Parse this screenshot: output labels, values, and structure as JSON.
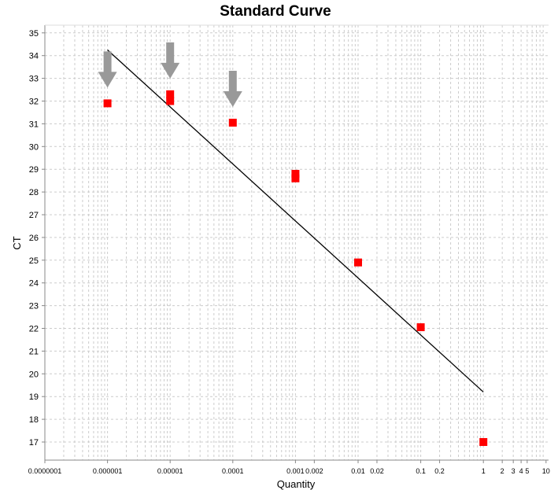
{
  "chart_data": {
    "type": "scatter",
    "title": "Standard Curve",
    "xlabel": "Quantity",
    "ylabel": "CT",
    "xscale": "log",
    "xlim": [
      1e-07,
      10
    ],
    "ylim": [
      16.2,
      35.4
    ],
    "grid": true,
    "x_tick_labels": [
      "0.0000001",
      "0.000001",
      "0.00001",
      "0.0001",
      "0.001",
      "0.002",
      "0.01",
      "0.02",
      "0.1",
      "0.2",
      "1",
      "2",
      "3",
      "4",
      "5",
      "10"
    ],
    "x_tick_values": [
      1e-07,
      1e-06,
      1e-05,
      0.0001,
      0.001,
      0.002,
      0.01,
      0.02,
      0.1,
      0.2,
      1,
      2,
      3,
      4,
      5,
      10
    ],
    "y_ticks": [
      17,
      18,
      19,
      20,
      21,
      22,
      23,
      24,
      25,
      26,
      27,
      28,
      29,
      30,
      31,
      32,
      33,
      34,
      35
    ],
    "points": [
      {
        "x": 1e-06,
        "y": 31.9
      },
      {
        "x": 1e-05,
        "y": 32.3
      },
      {
        "x": 1e-05,
        "y": 32.0
      },
      {
        "x": 0.0001,
        "y": 31.05
      },
      {
        "x": 0.001,
        "y": 28.8
      },
      {
        "x": 0.001,
        "y": 28.6
      },
      {
        "x": 0.01,
        "y": 24.9
      },
      {
        "x": 0.1,
        "y": 22.05
      },
      {
        "x": 1,
        "y": 17.0
      }
    ],
    "fit_line": [
      {
        "x": 1e-06,
        "y": 34.25
      },
      {
        "x": 1,
        "y": 19.2
      }
    ],
    "arrows_at_x": [
      1e-06,
      1e-05,
      0.0001
    ],
    "colors": {
      "points": "#ff0000",
      "line": "#000000",
      "arrows": "#999999",
      "grid": "#cccccc"
    }
  }
}
